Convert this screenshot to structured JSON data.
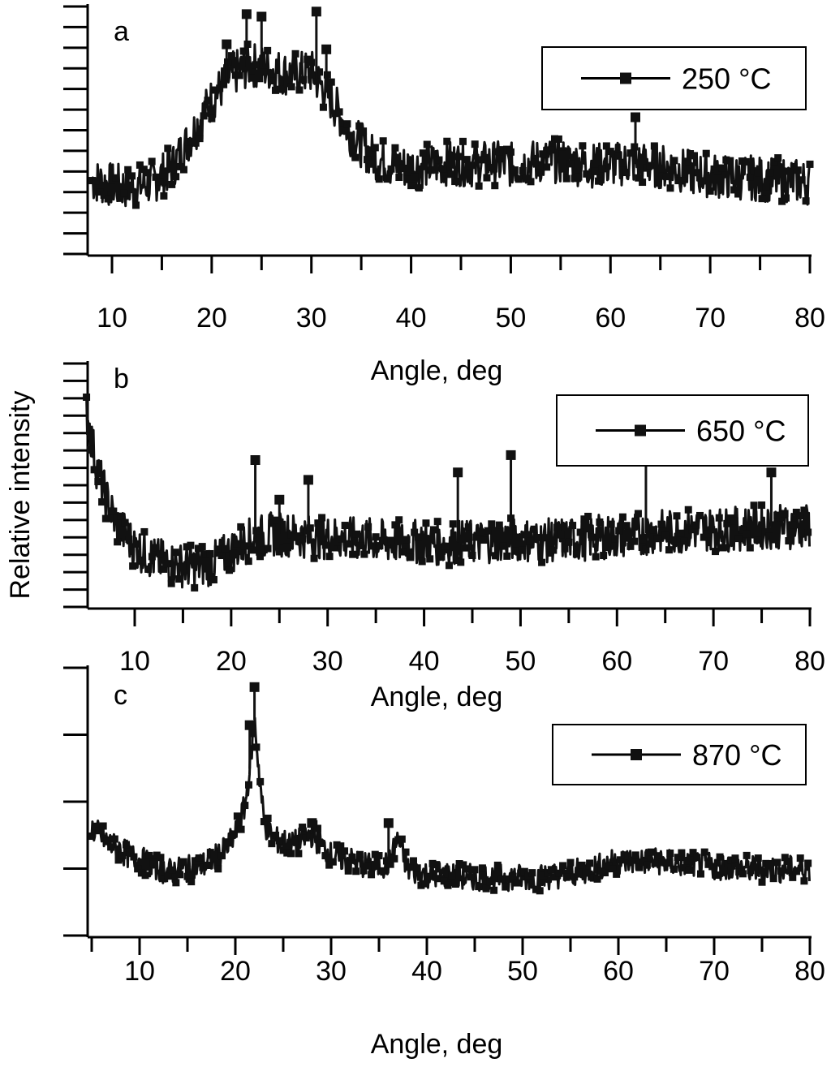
{
  "figure": {
    "ylabel": "Relative intensity"
  },
  "chart_data": [
    {
      "type": "scatter",
      "panel": "a",
      "xlabel": "Angle, deg",
      "xlim": [
        7.8,
        80
      ],
      "xticks": [
        10,
        20,
        30,
        40,
        50,
        60,
        70,
        80
      ],
      "legend": {
        "position": "top-right",
        "label": "250 °C"
      },
      "grid": false,
      "series": [
        {
          "name": "250 °C",
          "x": [
            8,
            10,
            12,
            14,
            16,
            18,
            20,
            22,
            24,
            26,
            28,
            30,
            32,
            34,
            36,
            38,
            40,
            42,
            44,
            46,
            48,
            50,
            52,
            54,
            56,
            58,
            60,
            62,
            64,
            66,
            68,
            70,
            72,
            74,
            76,
            78,
            80
          ],
          "y": [
            0.3,
            0.28,
            0.27,
            0.29,
            0.35,
            0.48,
            0.62,
            0.72,
            0.76,
            0.74,
            0.72,
            0.73,
            0.62,
            0.48,
            0.4,
            0.36,
            0.35,
            0.36,
            0.37,
            0.36,
            0.37,
            0.36,
            0.37,
            0.38,
            0.37,
            0.36,
            0.36,
            0.37,
            0.36,
            0.35,
            0.33,
            0.32,
            0.31,
            0.31,
            0.3,
            0.3,
            0.29
          ]
        }
      ],
      "peaks": [
        {
          "x": 21.5,
          "y": 0.84
        },
        {
          "x": 23.5,
          "y": 0.96
        },
        {
          "x": 25,
          "y": 0.95
        },
        {
          "x": 30.5,
          "y": 0.97
        },
        {
          "x": 31.5,
          "y": 0.82
        },
        {
          "x": 62.5,
          "y": 0.55
        }
      ]
    },
    {
      "type": "scatter",
      "panel": "b",
      "xlabel": "Angle, deg",
      "xlim": [
        5,
        80
      ],
      "xticks": [
        10,
        20,
        30,
        40,
        50,
        60,
        70,
        80
      ],
      "legend": {
        "position": "top-right",
        "label": "650 °C"
      },
      "grid": false,
      "series": [
        {
          "name": "650 °C",
          "x": [
            5,
            6,
            7,
            8,
            10,
            12,
            14,
            16,
            18,
            20,
            22,
            24,
            26,
            28,
            30,
            32,
            34,
            36,
            38,
            40,
            42,
            44,
            46,
            48,
            50,
            52,
            54,
            56,
            58,
            60,
            62,
            64,
            66,
            68,
            70,
            72,
            74,
            76,
            78,
            80
          ],
          "y": [
            0.8,
            0.58,
            0.45,
            0.35,
            0.25,
            0.2,
            0.18,
            0.17,
            0.18,
            0.23,
            0.28,
            0.3,
            0.3,
            0.29,
            0.29,
            0.28,
            0.28,
            0.27,
            0.27,
            0.27,
            0.26,
            0.27,
            0.27,
            0.28,
            0.28,
            0.27,
            0.28,
            0.28,
            0.29,
            0.29,
            0.3,
            0.31,
            0.31,
            0.32,
            0.32,
            0.32,
            0.33,
            0.33,
            0.33,
            0.33
          ]
        }
      ],
      "peaks": [
        {
          "x": 22.5,
          "y": 0.6
        },
        {
          "x": 25,
          "y": 0.44
        },
        {
          "x": 28,
          "y": 0.52
        },
        {
          "x": 43.5,
          "y": 0.55
        },
        {
          "x": 49,
          "y": 0.62
        },
        {
          "x": 63,
          "y": 0.62
        },
        {
          "x": 76,
          "y": 0.55
        }
      ]
    },
    {
      "type": "scatter",
      "panel": "c",
      "xlabel": "Angle, deg",
      "xlim": [
        5,
        80
      ],
      "xticks": [
        10,
        20,
        30,
        40,
        50,
        60,
        70,
        80
      ],
      "legend": {
        "position": "top-right",
        "label": "870 °C"
      },
      "grid": false,
      "series": [
        {
          "name": "870 °C",
          "x": [
            5,
            7,
            9,
            11,
            13,
            15,
            17,
            19,
            20,
            21,
            21.5,
            22,
            22.5,
            23,
            24,
            26,
            28,
            29,
            30,
            32,
            34,
            36,
            37,
            38,
            40,
            42,
            44,
            46,
            48,
            50,
            52,
            54,
            56,
            58,
            60,
            62,
            64,
            66,
            68,
            70,
            72,
            74,
            76,
            78,
            80
          ],
          "y": [
            0.4,
            0.34,
            0.3,
            0.27,
            0.24,
            0.25,
            0.27,
            0.32,
            0.38,
            0.48,
            0.62,
            0.8,
            0.6,
            0.42,
            0.36,
            0.34,
            0.38,
            0.34,
            0.3,
            0.28,
            0.26,
            0.27,
            0.36,
            0.25,
            0.23,
            0.23,
            0.22,
            0.22,
            0.22,
            0.22,
            0.22,
            0.23,
            0.24,
            0.26,
            0.28,
            0.28,
            0.28,
            0.27,
            0.27,
            0.26,
            0.26,
            0.25,
            0.25,
            0.25,
            0.25
          ]
        }
      ],
      "peaks": [
        {
          "x": 22,
          "y": 0.92
        },
        {
          "x": 21.5,
          "y": 0.78
        },
        {
          "x": 28,
          "y": 0.42
        },
        {
          "x": 36,
          "y": 0.42
        }
      ]
    }
  ]
}
